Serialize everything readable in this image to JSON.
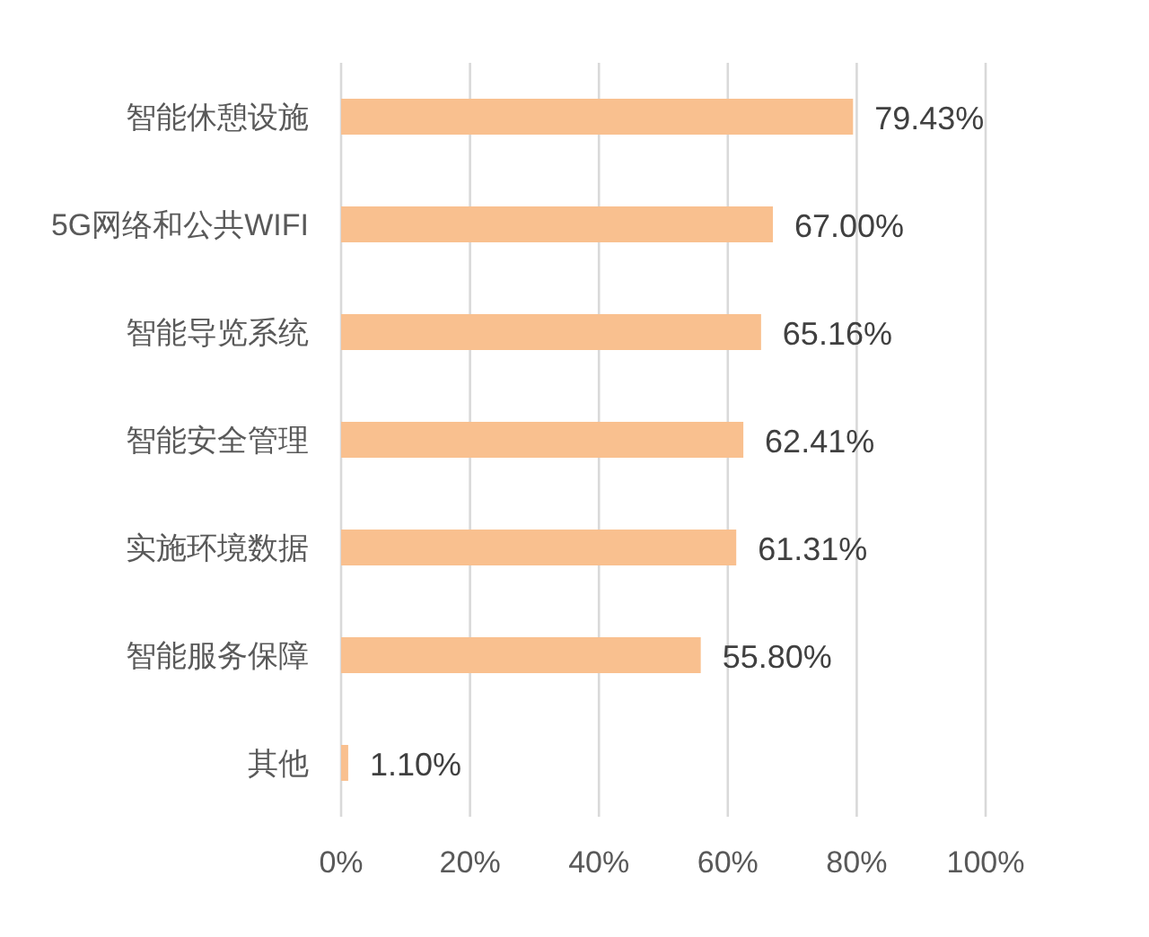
{
  "chart_data": {
    "type": "bar",
    "orientation": "horizontal",
    "categories": [
      "智能休憩设施",
      "5G网络和公共WIFI",
      "智能导览系统",
      "智能安全管理",
      "实施环境数据",
      "智能服务保障",
      "其他"
    ],
    "values": [
      79.43,
      67.0,
      65.16,
      62.41,
      61.31,
      55.8,
      1.1
    ],
    "value_labels": [
      "79.43%",
      "67.00%",
      "65.16%",
      "62.41%",
      "61.31%",
      "55.80%",
      "1.10%"
    ],
    "color": "#f9c08f",
    "xlim": [
      0,
      100
    ],
    "xticks": [
      {
        "value": 0,
        "label": "0%"
      },
      {
        "value": 20,
        "label": "20%"
      },
      {
        "value": 40,
        "label": "40%"
      },
      {
        "value": 60,
        "label": "60%"
      },
      {
        "value": 80,
        "label": "80%"
      },
      {
        "value": 100,
        "label": "100%"
      }
    ],
    "grid": "x"
  }
}
